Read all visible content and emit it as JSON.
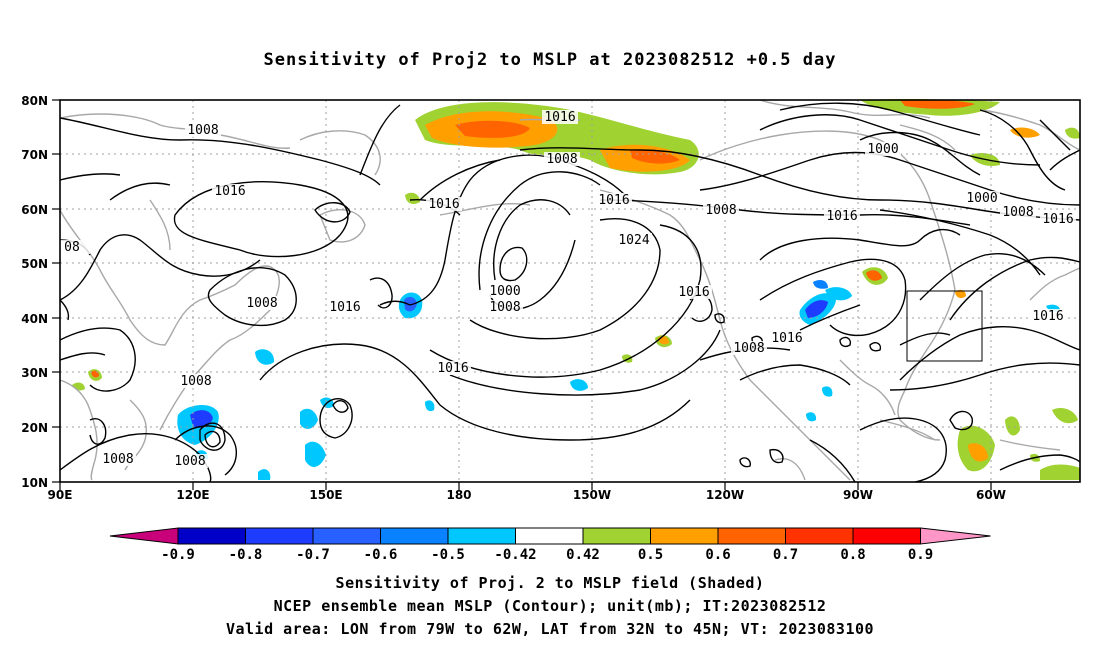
{
  "title": "Sensitivity of Proj2 to MSLP at 2023082512 +0.5 day",
  "lat_labels": [
    "80N",
    "70N",
    "60N",
    "50N",
    "40N",
    "30N",
    "20N",
    "10N"
  ],
  "lon_labels": [
    "90E",
    "120E",
    "150E",
    "180",
    "150W",
    "120W",
    "90W",
    "60W"
  ],
  "contour_labels": [
    {
      "text": "1008"
    },
    {
      "text": "1016"
    },
    {
      "text": "1008"
    },
    {
      "text": "1016"
    },
    {
      "text": "1008"
    },
    {
      "text": "1016"
    },
    {
      "text": "1008"
    },
    {
      "text": "1016"
    },
    {
      "text": "1008"
    },
    {
      "text": "1000"
    },
    {
      "text": "1008"
    },
    {
      "text": "1016"
    },
    {
      "text": "1024"
    },
    {
      "text": "1016"
    },
    {
      "text": "1016"
    },
    {
      "text": "1008"
    },
    {
      "text": "1016"
    },
    {
      "text": "1016"
    },
    {
      "text": "1008"
    },
    {
      "text": "1000"
    },
    {
      "text": "1000"
    },
    {
      "text": "1008"
    },
    {
      "text": "1016"
    },
    {
      "text": "1016"
    },
    {
      "text": "1008"
    },
    {
      "text": "08"
    }
  ],
  "colorbar": {
    "labels": [
      "-0.9",
      "-0.8",
      "-0.7",
      "-0.6",
      "-0.5",
      "-0.42",
      "0.42",
      "0.5",
      "0.6",
      "0.7",
      "0.8",
      "0.9"
    ],
    "colors": [
      "#c8007a",
      "#0000c8",
      "#1e3cff",
      "#2860ff",
      "#0a82ff",
      "#00c8ff",
      "#ffffff",
      "#a0d232",
      "#ffa000",
      "#ff6400",
      "#ff3200",
      "#ff0000",
      "#ff96c8"
    ]
  },
  "valid_box": {
    "lon_min": -79,
    "lon_max": -62,
    "lat_min": 32,
    "lat_max": 45
  },
  "captions": {
    "line1": "Sensitivity of Proj. 2 to MSLP field (Shaded)",
    "line2": "NCEP ensemble mean MSLP (Contour); unit(mb); IT:2023082512",
    "line3": "Valid area: LON from 79W to 62W, LAT from 32N to 45N; VT: 2023083100"
  }
}
